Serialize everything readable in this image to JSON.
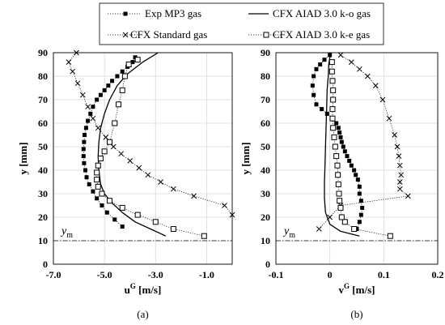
{
  "legend": {
    "items": [
      {
        "label": "Exp MP3 gas",
        "style": "exp"
      },
      {
        "label": "CFX AIAD 3.0 k-o gas",
        "style": "ko"
      },
      {
        "label": "CFX Standard gas",
        "style": "std"
      },
      {
        "label": "CFX AIAD 3.0 k-e gas",
        "style": "ke"
      }
    ]
  },
  "chart_data": [
    {
      "type": "scatter",
      "panel_label": "(a)",
      "xlabel_main": "u",
      "xlabel_sup": "G",
      "xlabel_unit": " [m/s]",
      "ylabel": "y [mm]",
      "xlim": [
        -7.0,
        0.0
      ],
      "ylim": [
        0,
        90
      ],
      "xticks": [
        -7.0,
        -5.0,
        -3.0,
        -1.0
      ],
      "xtick_labels": [
        "-7.0",
        "-5.0",
        "-3.0",
        "-1.0"
      ],
      "yticks": [
        0,
        10,
        20,
        30,
        40,
        50,
        60,
        70,
        80,
        90
      ],
      "ym_value": 10,
      "ym_label": "y",
      "ym_sub": "m",
      "series": [
        {
          "name": "Exp MP3 gas",
          "style": "exp",
          "x": [
            -4.3,
            -4.6,
            -4.9,
            -5.1,
            -5.3,
            -5.45,
            -5.6,
            -5.7,
            -5.75,
            -5.8,
            -5.82,
            -5.82,
            -5.8,
            -5.78,
            -5.72,
            -5.65,
            -5.55,
            -5.45,
            -5.3,
            -5.15,
            -5.0,
            -4.85,
            -4.7,
            -4.5,
            -4.3,
            -4.1,
            -3.9,
            -3.8
          ],
          "y": [
            16,
            19,
            22,
            25,
            28,
            31,
            34,
            37,
            40,
            43,
            46,
            49,
            52,
            55,
            58,
            61,
            64,
            67,
            70,
            72,
            74,
            76,
            78,
            80,
            82,
            84,
            86,
            88
          ]
        },
        {
          "name": "CFX AIAD 3.0 k-o gas",
          "style": "ko",
          "x": [
            -2.6,
            -3.2,
            -3.8,
            -4.3,
            -4.7,
            -5.0,
            -5.15,
            -5.22,
            -5.25,
            -5.22,
            -5.15,
            -5.0,
            -4.8,
            -4.5,
            -4.1,
            -3.5,
            -2.9
          ],
          "y": [
            12,
            15,
            18,
            22,
            26,
            30,
            34,
            40,
            46,
            52,
            58,
            64,
            70,
            76,
            81,
            86,
            90
          ]
        },
        {
          "name": "CFX Standard gas",
          "style": "std",
          "x": [
            0.0,
            -0.3,
            -1.5,
            -2.3,
            -2.8,
            -3.3,
            -3.65,
            -4.0,
            -4.35,
            -4.65,
            -4.95,
            -5.25,
            -5.45,
            -5.65,
            -5.85,
            -6.05,
            -6.25,
            -6.4,
            -6.1
          ],
          "y": [
            21,
            25,
            29,
            32,
            35,
            38,
            41,
            44,
            47,
            50,
            54,
            58,
            62,
            67,
            72,
            77,
            82,
            86,
            90
          ]
        },
        {
          "name": "CFX AIAD 3.0 k-e gas",
          "style": "ke",
          "x": [
            -1.1,
            -2.3,
            -3.0,
            -3.7,
            -4.3,
            -4.8,
            -5.1,
            -5.25,
            -5.3,
            -5.3,
            -5.25,
            -5.15,
            -5.0,
            -4.8,
            -4.6,
            -4.45,
            -4.3,
            -4.2,
            -4.05,
            -3.7
          ],
          "y": [
            12,
            15,
            18,
            21,
            24,
            27,
            30,
            33,
            36,
            39,
            42,
            45,
            48,
            52,
            60,
            68,
            74,
            80,
            85,
            87
          ]
        }
      ]
    },
    {
      "type": "scatter",
      "panel_label": "(b)",
      "xlabel_main": "v",
      "xlabel_sup": "G",
      "xlabel_unit": " [m/s]",
      "ylabel": "y [mm]",
      "xlim": [
        -0.1,
        0.2
      ],
      "ylim": [
        0,
        90
      ],
      "xticks": [
        -0.1,
        0.0,
        0.1,
        0.2
      ],
      "xtick_labels": [
        "-0.1",
        "0",
        "0.1",
        "0.2"
      ],
      "yticks": [
        0,
        10,
        20,
        30,
        40,
        50,
        60,
        70,
        80,
        90
      ],
      "ym_value": 10,
      "ym_label": "y",
      "ym_sub": "m",
      "series": [
        {
          "name": "Exp MP3 gas",
          "style": "exp",
          "x": [
            0.05,
            0.055,
            0.058,
            0.06,
            0.058,
            0.055,
            0.055,
            0.052,
            0.048,
            0.045,
            0.04,
            0.036,
            0.032,
            0.028,
            0.025,
            0.022,
            0.02,
            0.018,
            0.016,
            0.012,
            0.005,
            -0.005,
            -0.015,
            -0.025,
            -0.03,
            -0.032,
            -0.03,
            -0.025,
            -0.018,
            -0.01,
            0.0
          ],
          "y": [
            15,
            18,
            21,
            24,
            27,
            30,
            33,
            36,
            38,
            40,
            42,
            44,
            46,
            48,
            50,
            52,
            54,
            56,
            58,
            60,
            62,
            64,
            66,
            68,
            72,
            76,
            80,
            83,
            85,
            87,
            89
          ]
        },
        {
          "name": "CFX AIAD 3.0 k-o gas",
          "style": "ko",
          "x": [
            0.055,
            0.02,
            0.0,
            -0.008,
            -0.01,
            -0.01,
            -0.009,
            -0.008,
            -0.007,
            -0.006,
            -0.005,
            -0.003,
            -0.002,
            0.0,
            0.002
          ],
          "y": [
            12,
            14,
            17,
            22,
            28,
            35,
            42,
            50,
            58,
            66,
            74,
            80,
            85,
            88,
            90
          ]
        },
        {
          "name": "CFX Standard gas",
          "style": "std",
          "x": [
            -0.02,
            0.0,
            0.02,
            0.145,
            0.13,
            0.13,
            0.132,
            0.13,
            0.128,
            0.125,
            0.12,
            0.11,
            0.098,
            0.085,
            0.07,
            0.055,
            0.04,
            0.02
          ],
          "y": [
            15,
            20,
            25,
            29,
            32,
            35,
            38,
            42,
            46,
            50,
            55,
            62,
            70,
            76,
            80,
            83,
            86,
            89
          ]
        },
        {
          "name": "CFX AIAD 3.0 k-e gas",
          "style": "ke",
          "x": [
            0.112,
            0.045,
            0.028,
            0.022,
            0.02,
            0.018,
            0.017,
            0.016,
            0.015,
            0.014,
            0.012,
            0.01,
            0.008,
            0.006,
            0.005,
            0.005,
            0.006,
            0.006,
            0.005,
            0.004,
            0.004
          ],
          "y": [
            12,
            15,
            18,
            20,
            24,
            27,
            30,
            34,
            38,
            42,
            46,
            50,
            54,
            58,
            62,
            66,
            70,
            74,
            78,
            82,
            86
          ]
        }
      ]
    }
  ]
}
